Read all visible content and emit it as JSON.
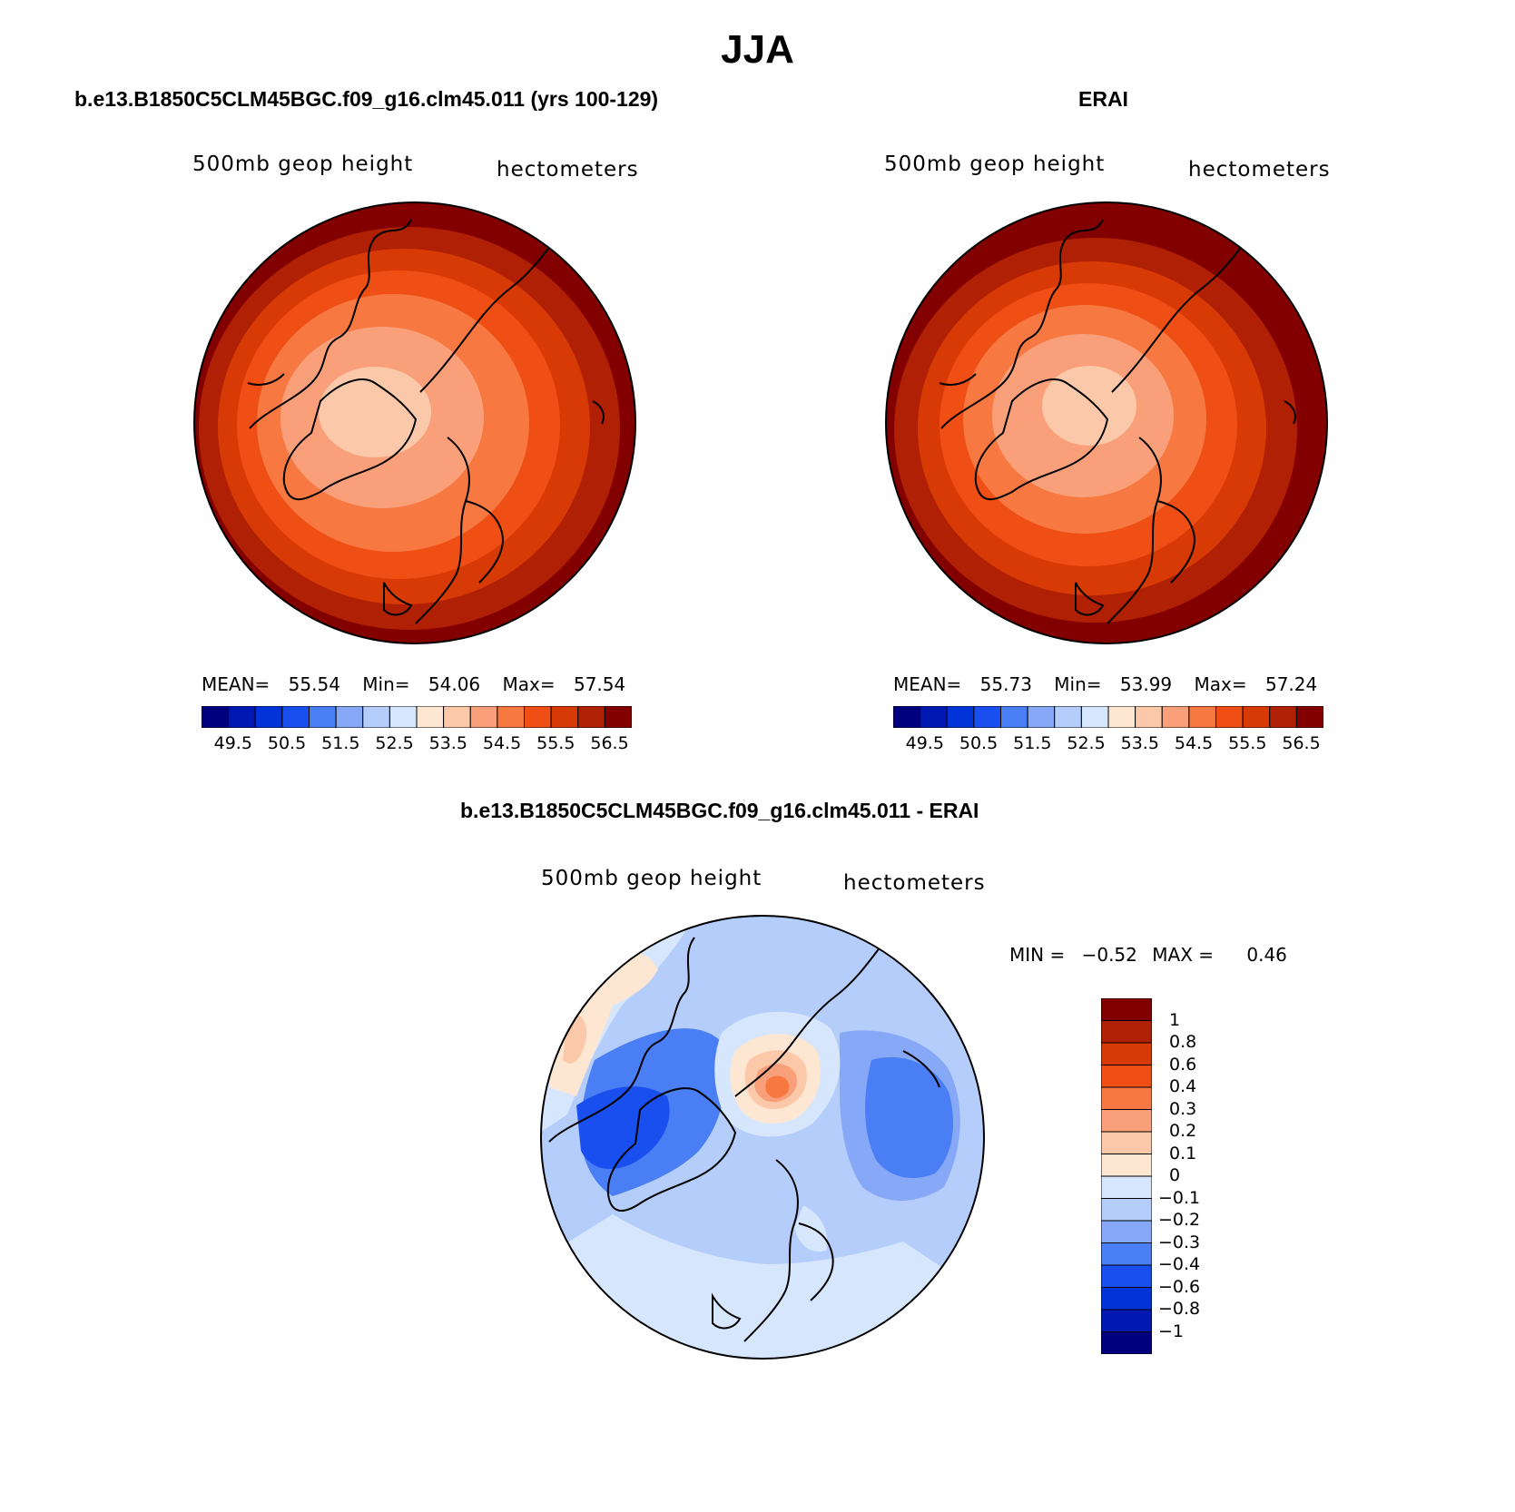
{
  "figure": {
    "title": "JJA"
  },
  "panels": [
    {
      "title": "b.e13.B1850C5CLM45BGC.f09_g16.clm45.011 (yrs 100-129)",
      "variable": "500mb geop height",
      "units": "hectometers",
      "stats": {
        "mean_label": "MEAN=",
        "mean": "55.54",
        "min_label": "Min=",
        "min": "54.06",
        "max_label": "Max=",
        "max": "57.54"
      },
      "colorbar": {
        "colors": [
          "#00007f",
          "#0019b2",
          "#0033d8",
          "#1a4fef",
          "#4a7ef5",
          "#86a8f7",
          "#b4cdfa",
          "#d6e6fc",
          "#fde7d2",
          "#fbc9aa",
          "#f9a07a",
          "#f77840",
          "#ef4e14",
          "#d73a04",
          "#b02004",
          "#820000"
        ],
        "tick_labels": [
          "49.5",
          "50.5",
          "51.5",
          "52.5",
          "53.5",
          "54.5",
          "55.5",
          "56.5"
        ]
      },
      "field_description": "Polar stereographic Northern Hemisphere; height increases from ~54 over the pole to ~57.5 toward the edge"
    },
    {
      "title": "ERAI",
      "variable": "500mb geop height",
      "units": "hectometers",
      "stats": {
        "mean_label": "MEAN=",
        "mean": "55.73",
        "min_label": "Min=",
        "min": "53.99",
        "max_label": "Max=",
        "max": "57.24"
      },
      "colorbar": {
        "colors": [
          "#00007f",
          "#0019b2",
          "#0033d8",
          "#1a4fef",
          "#4a7ef5",
          "#86a8f7",
          "#b4cdfa",
          "#d6e6fc",
          "#fde7d2",
          "#fbc9aa",
          "#f9a07a",
          "#f77840",
          "#ef4e14",
          "#d73a04",
          "#b02004",
          "#820000"
        ],
        "tick_labels": [
          "49.5",
          "50.5",
          "51.5",
          "52.5",
          "53.5",
          "54.5",
          "55.5",
          "56.5"
        ]
      }
    },
    {
      "title": "b.e13.B1850C5CLM45BGC.f09_g16.clm45.011 - ERAI",
      "variable": "500mb geop height",
      "units": "hectometers",
      "stats": {
        "min_label": "MIN =",
        "min": "−0.52",
        "max_label": "MAX =",
        "max": "0.46"
      },
      "colorbar": {
        "colors": [
          "#820000",
          "#b02004",
          "#d73a04",
          "#ef4e14",
          "#f77840",
          "#f9a07a",
          "#fbc9aa",
          "#fde7d2",
          "#d6e6fc",
          "#b4cdfa",
          "#86a8f7",
          "#4a7ef5",
          "#1a4fef",
          "#0033d8",
          "#0019b2",
          "#00007f"
        ],
        "tick_labels": [
          "1",
          "0.8",
          "0.6",
          "0.4",
          "0.3",
          "0.2",
          "0.1",
          "0",
          "−0.1",
          "−0.2",
          "−0.3",
          "−0.4",
          "−0.6",
          "−0.8",
          "−1"
        ]
      }
    }
  ]
}
